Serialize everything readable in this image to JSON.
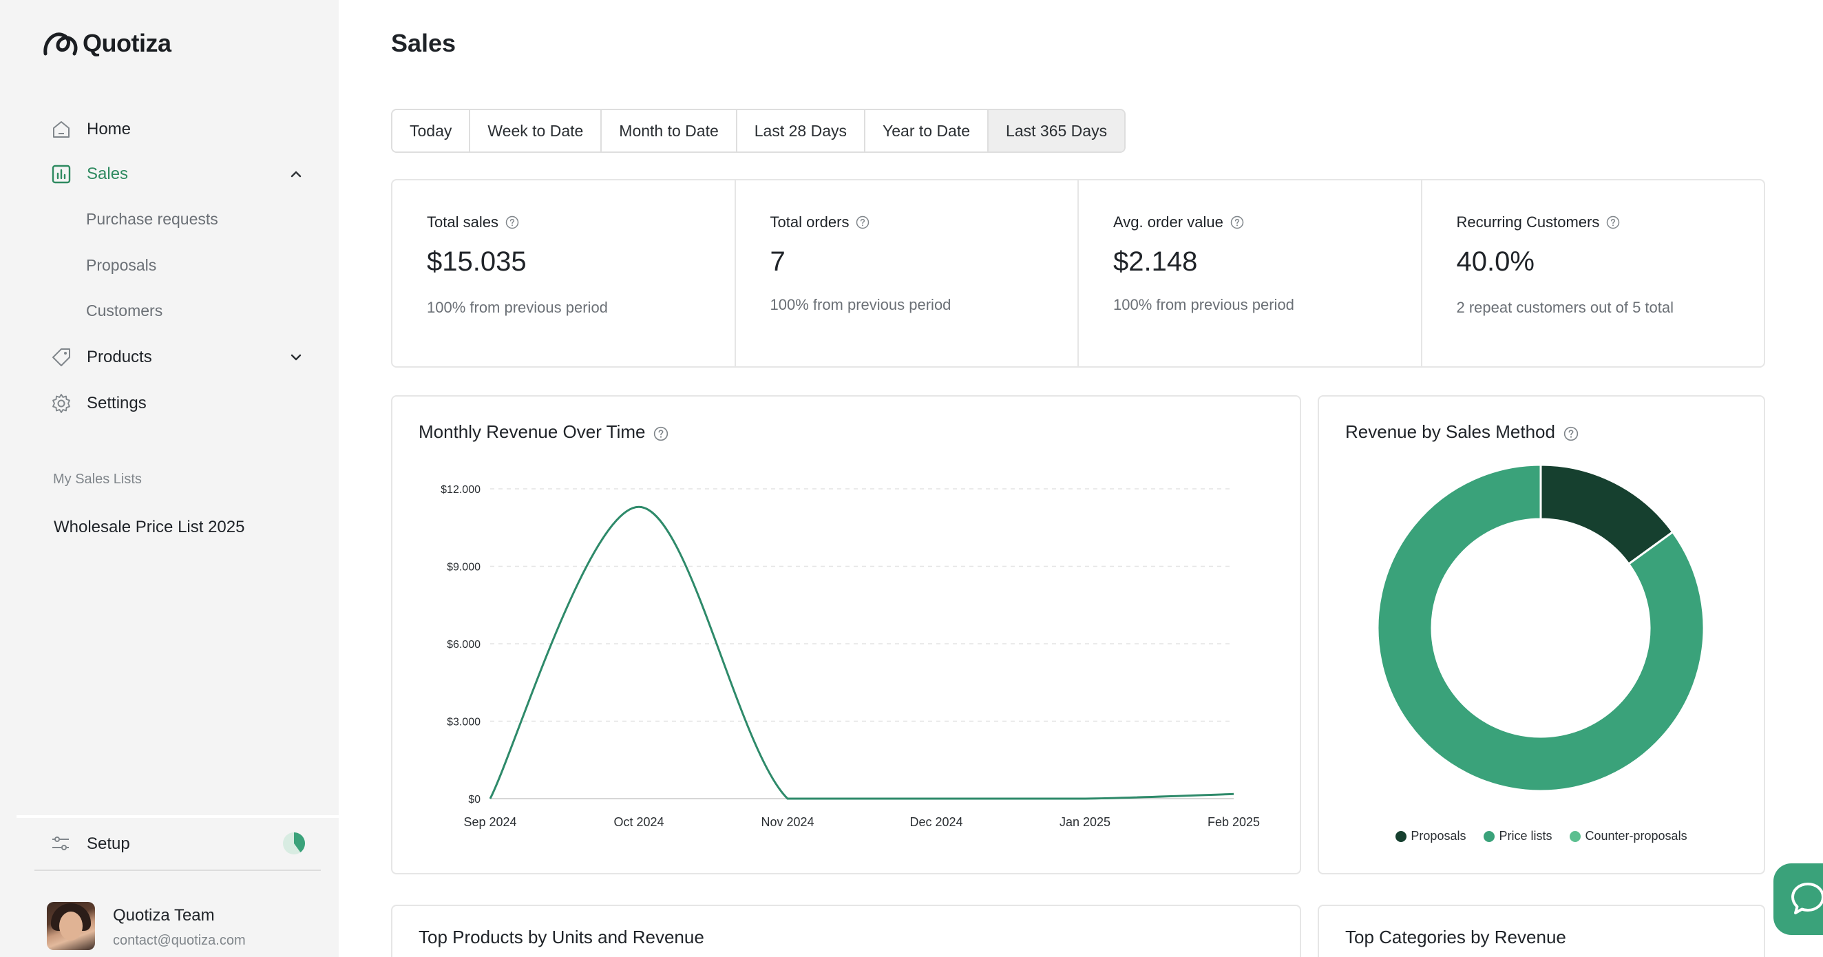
{
  "app": {
    "name": "Quotiza"
  },
  "sidebar": {
    "nav": [
      {
        "label": "Home",
        "icon": "home-icon"
      },
      {
        "label": "Sales",
        "icon": "chart-icon",
        "active": true,
        "expanded": true
      },
      {
        "label": "Products",
        "icon": "tag-icon",
        "expanded": false
      },
      {
        "label": "Settings",
        "icon": "gear-icon"
      }
    ],
    "sales_sub": [
      "Purchase requests",
      "Proposals",
      "Customers"
    ],
    "lists_label": "My Sales Lists",
    "lists": [
      "Wholesale Price List 2025"
    ],
    "setup": {
      "label": "Setup",
      "progress": 0.4
    },
    "user": {
      "name": "Quotiza Team",
      "email": "contact@quotiza.com"
    }
  },
  "main": {
    "title": "Sales",
    "tabs": [
      "Today",
      "Week to Date",
      "Month to Date",
      "Last 28 Days",
      "Year to Date",
      "Last 365 Days"
    ],
    "selected_tab": "Last 365 Days",
    "kpis": [
      {
        "label": "Total sales",
        "value": "$15.035",
        "sub": "100% from previous period"
      },
      {
        "label": "Total orders",
        "value": "7",
        "sub": "100% from previous period"
      },
      {
        "label": "Avg. order value",
        "value": "$2.148",
        "sub": "100% from previous period"
      },
      {
        "label": "Recurring Customers",
        "value": "40.0%",
        "sub": "2 repeat customers out of 5 total"
      }
    ],
    "line_card_title": "Monthly Revenue Over Time",
    "pie_card_title": "Revenue by Sales Method",
    "products_card_title": "Top Products by Units and Revenue",
    "categories_card_title": "Top Categories by Revenue"
  },
  "chart_data": [
    {
      "type": "line",
      "title": "Monthly Revenue Over Time",
      "x": [
        "Sep 2024",
        "Oct 2024",
        "Nov 2024",
        "Dec 2024",
        "Jan 2025",
        "Feb 2025"
      ],
      "series": [
        {
          "values": [
            0,
            11300,
            0,
            0,
            0,
            180
          ]
        }
      ],
      "yticks": [
        "$0",
        "$3.000",
        "$6.000",
        "$9.000",
        "$12.000"
      ],
      "ylim": [
        0,
        12000
      ],
      "grid": true,
      "color": "#2e8a6a"
    },
    {
      "type": "pie",
      "title": "Revenue by Sales Method",
      "labels": [
        "Proposals",
        "Price lists",
        "Counter-proposals"
      ],
      "values": [
        15,
        85,
        0
      ],
      "colors": [
        "#16402f",
        "#3aa27a",
        "#5cbf90"
      ],
      "legend": "bottom"
    }
  ],
  "colors": {
    "accent": "#2e8a60",
    "brand_green": "#3aa27a"
  }
}
